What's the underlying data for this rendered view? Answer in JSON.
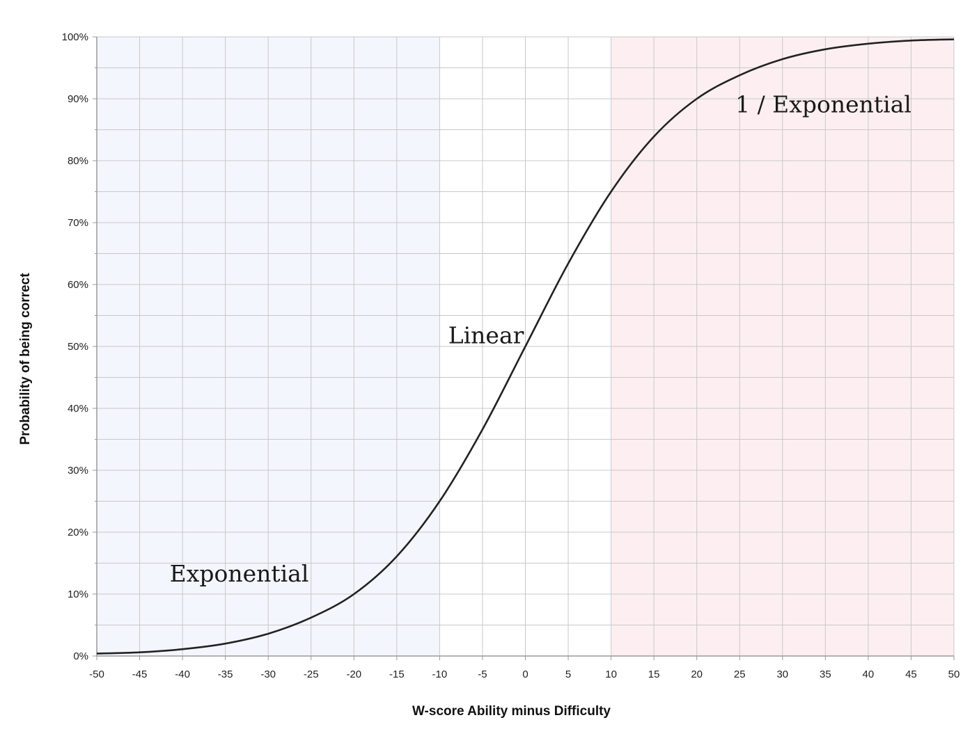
{
  "chart_data": {
    "type": "line",
    "title": "",
    "xlabel": "W-score Ability minus Difficulty",
    "ylabel": "Probability of being correct",
    "xlim": [
      -50,
      50
    ],
    "ylim": [
      0,
      100
    ],
    "x_ticks": [
      -50,
      -45,
      -40,
      -35,
      -30,
      -25,
      -20,
      -15,
      -10,
      -5,
      0,
      5,
      10,
      15,
      20,
      25,
      30,
      35,
      40,
      45,
      50
    ],
    "y_ticks": [
      0,
      10,
      20,
      30,
      40,
      50,
      60,
      70,
      80,
      90,
      100
    ],
    "y_tick_labels": [
      "0%",
      "10%",
      "20%",
      "30%",
      "40%",
      "50%",
      "60%",
      "70%",
      "80%",
      "90%",
      "100%"
    ],
    "grid": true,
    "series": [
      {
        "x": [
          -50,
          -45,
          -40,
          -35,
          -30,
          -25,
          -20,
          -15,
          -10,
          -5,
          0,
          5,
          10,
          15,
          20,
          25,
          30,
          35,
          40,
          45,
          50
        ],
        "y": [
          0.4,
          0.6,
          1.1,
          2.0,
          3.6,
          6.2,
          10.0,
          16.1,
          25.0,
          36.6,
          50.0,
          63.4,
          75.0,
          83.9,
          90.0,
          93.8,
          96.4,
          98.0,
          98.9,
          99.4,
          99.6
        ],
        "color": "#222222"
      }
    ],
    "regions": [
      {
        "label": "Exponential",
        "x_range": [
          -50,
          -10
        ],
        "color": "#f3f6fc",
        "label_at": [
          -41.5,
          12
        ]
      },
      {
        "label": "Linear",
        "x_range": [
          -10,
          10
        ],
        "color": "#ffffff",
        "label_at": [
          -9,
          50.5
        ]
      },
      {
        "label": "1 / Exponential",
        "x_range": [
          10,
          50
        ],
        "color": "#fdeff1",
        "label_at": [
          24.5,
          87.8
        ]
      }
    ],
    "colors": {
      "grid": "#c8c8c8",
      "axis": "#9a9a9a",
      "curve": "#222222"
    }
  }
}
